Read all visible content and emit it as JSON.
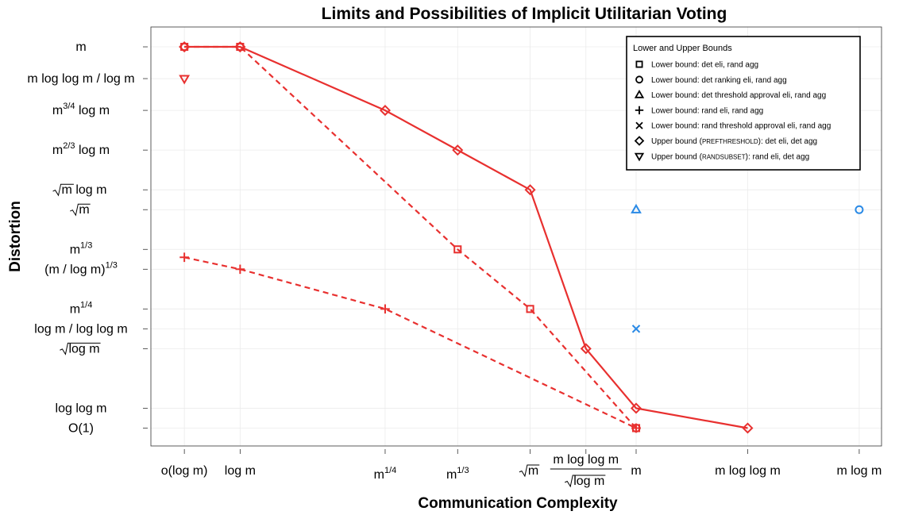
{
  "chart_data": {
    "type": "line",
    "title": "Limits and Possibilities of Implicit Utilitarian Voting",
    "xlabel": "Communication Complexity",
    "ylabel": "Distortion",
    "x_ticks": [
      {
        "pos": 0,
        "label": "o(log m)"
      },
      {
        "pos": 1,
        "label": "log m"
      },
      {
        "pos": 3.6,
        "label": "m",
        "sup": "1/4"
      },
      {
        "pos": 4.9,
        "label": "m",
        "sup": "1/3"
      },
      {
        "pos": 6.2,
        "label": "m",
        "sqrt": true
      },
      {
        "pos": 7.2,
        "label": "m log log m",
        "den": "log m",
        "frac": true
      },
      {
        "pos": 8.1,
        "label": "m"
      },
      {
        "pos": 10.1,
        "label": "m log log m"
      },
      {
        "pos": 12.1,
        "label": "m log m"
      }
    ],
    "y_ticks": [
      {
        "pos": 0,
        "label": "O(1)"
      },
      {
        "pos": 0.5,
        "label": "log log m"
      },
      {
        "pos": 2.0,
        "label": "log m",
        "sqrt": true
      },
      {
        "pos": 2.5,
        "label": "log m / log log m"
      },
      {
        "pos": 3.0,
        "label": "m",
        "sup": "1/4"
      },
      {
        "pos": 4.0,
        "label": "(m / log m)",
        "sup": "1/3"
      },
      {
        "pos": 4.5,
        "label": "m",
        "sup": "1/3"
      },
      {
        "pos": 5.5,
        "label": "m",
        "sqrt": true
      },
      {
        "pos": 6.0,
        "label": "log m",
        "sqrt_prefix": "m"
      },
      {
        "pos": 7.0,
        "label": "m",
        "sup": "2/3",
        "suffix": " log m"
      },
      {
        "pos": 8.0,
        "label": "m",
        "sup": "3/4",
        "suffix": " log m"
      },
      {
        "pos": 8.8,
        "label": "m log log m / log m"
      },
      {
        "pos": 9.6,
        "label": "m"
      }
    ],
    "xlim": [
      -0.6,
      12.5
    ],
    "ylim": [
      -0.45,
      10.1
    ],
    "grid": true,
    "legend": {
      "title": "Lower and Upper Bounds",
      "position": "top-right",
      "entries": [
        {
          "marker": "square",
          "label": "Lower bound: det eli, rand agg"
        },
        {
          "marker": "circle",
          "label": "Lower bound: det ranking eli, rand agg"
        },
        {
          "marker": "triangle-up",
          "label": "Lower bound: det threshold approval eli, rand agg"
        },
        {
          "marker": "plus",
          "label": "Lower bound: rand eli, rand agg"
        },
        {
          "marker": "cross",
          "label": "Lower bound: rand threshold approval eli, rand agg"
        },
        {
          "marker": "diamond",
          "label_pre": "Upper bound (",
          "label_sc": "PrefThreshold",
          "label_post": "): det eli, det agg"
        },
        {
          "marker": "triangle-down",
          "label_pre": "Upper bound (",
          "label_sc": "RandSubset",
          "label_post": "): rand eli, det agg"
        }
      ]
    },
    "colors": {
      "red": "#e8302f",
      "blue": "#2a8ae6"
    },
    "series": [
      {
        "marker": "diamond",
        "line": "solid",
        "color": "red",
        "points": [
          [
            0,
            9.6
          ],
          [
            1,
            9.6
          ],
          [
            3.6,
            8.0
          ],
          [
            4.9,
            7.0
          ],
          [
            6.2,
            6.0
          ],
          [
            7.2,
            2.0
          ],
          [
            8.1,
            0.5
          ],
          [
            10.1,
            0
          ]
        ]
      },
      {
        "marker": "square",
        "line": "dashed",
        "color": "red",
        "points": [
          [
            0,
            9.6
          ],
          [
            1,
            9.6
          ],
          [
            4.9,
            4.5
          ],
          [
            6.2,
            3.0
          ],
          [
            8.1,
            0
          ]
        ]
      },
      {
        "marker": "plus",
        "line": "dashed",
        "color": "red",
        "points": [
          [
            0,
            4.3
          ],
          [
            1,
            4.0
          ],
          [
            3.6,
            3.0
          ],
          [
            8.1,
            0
          ]
        ]
      },
      {
        "marker": "circle",
        "line": "none",
        "color": "red",
        "points": [
          [
            0,
            9.6
          ],
          [
            1,
            9.6
          ]
        ]
      },
      {
        "marker": "triangle-down",
        "line": "none",
        "color": "red",
        "points": [
          [
            0,
            8.8
          ]
        ]
      },
      {
        "marker": "triangle-up",
        "line": "none",
        "color": "blue",
        "points": [
          [
            8.1,
            5.5
          ]
        ]
      },
      {
        "marker": "circle",
        "line": "none",
        "color": "blue",
        "points": [
          [
            12.1,
            5.5
          ]
        ]
      },
      {
        "marker": "cross",
        "line": "none",
        "color": "blue",
        "points": [
          [
            8.1,
            2.5
          ]
        ]
      },
      {
        "marker": "circle",
        "line": "none",
        "color": "red",
        "points": [
          [
            8.1,
            0
          ]
        ]
      }
    ]
  }
}
